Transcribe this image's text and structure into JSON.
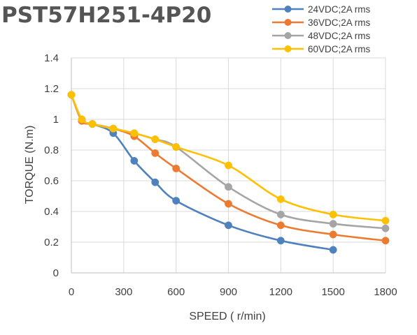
{
  "chart_data": {
    "type": "line",
    "title": "PST57H251-4P20",
    "xlabel": "SPEED ( r/min)",
    "ylabel": "TORQUE (N.m)",
    "xlim": [
      0,
      1800
    ],
    "ylim": [
      0,
      1.4
    ],
    "xticks": [
      "0",
      "300",
      "600",
      "900",
      "1200",
      "1500",
      "1800"
    ],
    "yticks": [
      "0",
      "0.2",
      "0.4",
      "0.6",
      "0.8",
      "1",
      "1.2",
      "1.4"
    ],
    "grid": true,
    "legend_position": "top-right",
    "series": [
      {
        "name": "24VDC;2A rms",
        "color": "#4e81bd",
        "x": [
          0,
          60,
          120,
          240,
          360,
          480,
          600,
          900,
          1200,
          1500
        ],
        "y": [
          1.16,
          0.99,
          0.97,
          0.91,
          0.73,
          0.59,
          0.47,
          0.31,
          0.21,
          0.15
        ]
      },
      {
        "name": "36VDC;2A rms",
        "color": "#ec7b31",
        "x": [
          0,
          60,
          120,
          240,
          360,
          480,
          600,
          900,
          1200,
          1500,
          1800
        ],
        "y": [
          1.16,
          0.99,
          0.97,
          0.94,
          0.89,
          0.78,
          0.68,
          0.45,
          0.31,
          0.25,
          0.21
        ]
      },
      {
        "name": "48VDC;2A rms",
        "color": "#a5a5a5",
        "x": [
          0,
          60,
          120,
          240,
          360,
          480,
          600,
          900,
          1200,
          1500,
          1800
        ],
        "y": [
          1.16,
          1.0,
          0.97,
          0.94,
          0.91,
          0.87,
          0.82,
          0.56,
          0.38,
          0.32,
          0.29
        ]
      },
      {
        "name": "60VDC;2A rms",
        "color": "#ffc000",
        "x": [
          0,
          60,
          120,
          240,
          360,
          480,
          600,
          900,
          1200,
          1500,
          1800
        ],
        "y": [
          1.16,
          1.0,
          0.97,
          0.94,
          0.91,
          0.87,
          0.82,
          0.7,
          0.48,
          0.38,
          0.34
        ]
      }
    ]
  }
}
